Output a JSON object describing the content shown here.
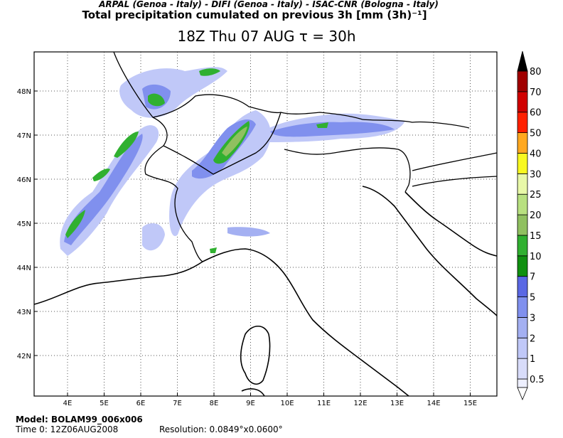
{
  "header": {
    "credits": "ARPAL (Genoa - Italy)  -  DIFI (Genoa - Italy)  -  ISAC-CNR (Bologna - Italy)",
    "title": "Total precipitation cumulated on previous 3h [mm (3h)⁻¹]",
    "subtitle": "18Z Thu 07 AUG  τ = 30h"
  },
  "map": {
    "lon_labels": [
      "4E",
      "5E",
      "6E",
      "7E",
      "8E",
      "9E",
      "10E",
      "11E",
      "12E",
      "13E",
      "14E",
      "15E"
    ],
    "lat_labels": [
      "48N",
      "47N",
      "46N",
      "45N",
      "44N",
      "43N",
      "42N"
    ]
  },
  "colorbar": {
    "levels": [
      0.5,
      1,
      2,
      3,
      5,
      7,
      10,
      15,
      20,
      25,
      30,
      40,
      50,
      60,
      70,
      80
    ],
    "colors": [
      "#d8dcfa",
      "#c0c8f8",
      "#a4b0f2",
      "#8090ee",
      "#5a68e4",
      "#109010",
      "#30b030",
      "#90c060",
      "#b8e080",
      "#e8f8a8",
      "#f8f820",
      "#ffa820",
      "#ff2000",
      "#d00000",
      "#a00000",
      "#000000"
    ]
  },
  "footer": {
    "model": "Model: BOLAM99_006x006",
    "time": "Time 0: 12Z06AUG2008",
    "resolution": "Resolution: 0.0849°x0.0600°"
  }
}
